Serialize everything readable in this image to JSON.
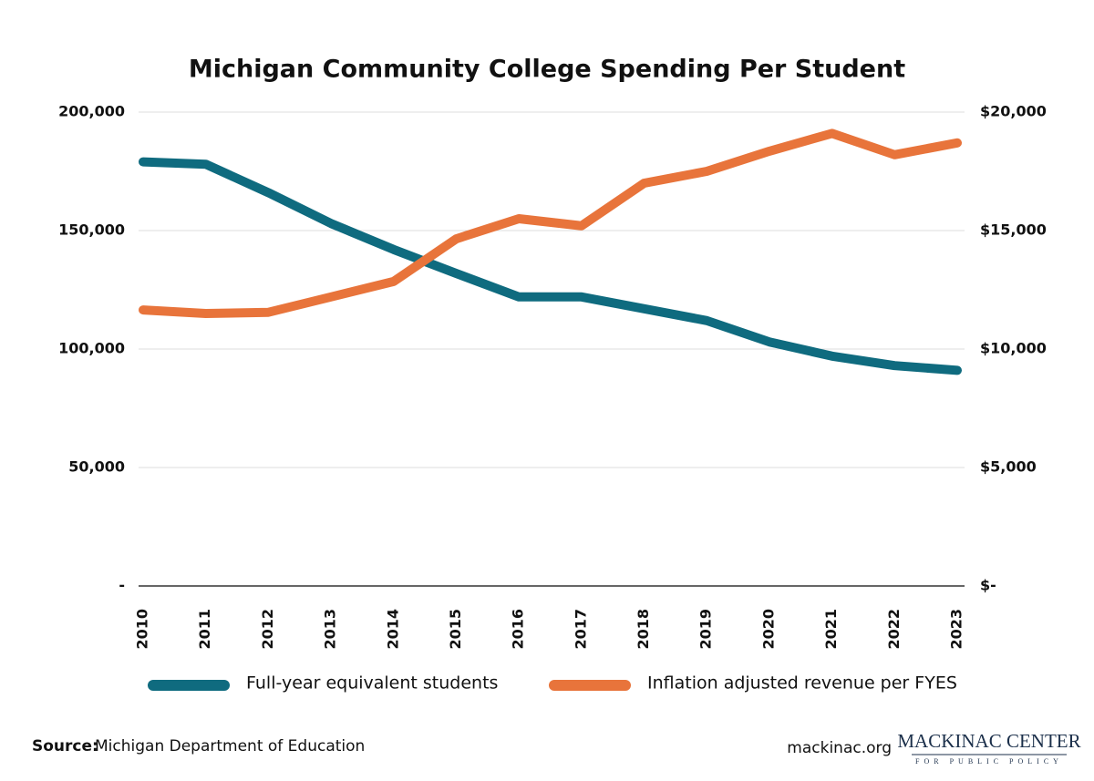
{
  "chart_data": {
    "type": "line",
    "title": "Michigan Community College Spending Per Student",
    "categories": [
      "2010",
      "2011",
      "2012",
      "2013",
      "2014",
      "2015",
      "2016",
      "2017",
      "2018",
      "2019",
      "2020",
      "2021",
      "2022",
      "2023"
    ],
    "series": [
      {
        "name": "Full-year equivalent students",
        "color": "#0f6b7f",
        "values": [
          179000,
          178000,
          166000,
          153000,
          142000,
          131900,
          122000,
          122000,
          117000,
          112000,
          103000,
          97000,
          93000,
          91000
        ]
      },
      {
        "name": "Inflation adjusted revenue per FYES",
        "color": "#e8743b",
        "axis": "y2",
        "values": [
          11650,
          11500,
          11550,
          12200,
          12850,
          14650,
          15500,
          15200,
          17000,
          17500,
          18350,
          19100,
          18200,
          18700
        ]
      }
    ],
    "ylim": [
      0,
      200000
    ],
    "yticks": [
      {
        "value": 0,
        "label": "-"
      },
      {
        "value": 50000,
        "label": "50,000"
      },
      {
        "value": 100000,
        "label": "100,000"
      },
      {
        "value": 150000,
        "label": "150,000"
      },
      {
        "value": 200000,
        "label": "200,000"
      }
    ],
    "y2lim": [
      0,
      20000
    ],
    "y2ticks": [
      {
        "value": 0,
        "label": "$-"
      },
      {
        "value": 5000,
        "label": "$5,000"
      },
      {
        "value": 10000,
        "label": "$10,000"
      },
      {
        "value": 15000,
        "label": "$15,000"
      },
      {
        "value": 20000,
        "label": "$20,000"
      }
    ],
    "grid": true
  },
  "footer": {
    "source_label": "Source:",
    "source": "Michigan Department of Education",
    "website": "mackinac.org",
    "logo_name": "MACKINAC CENTER",
    "logo_tagline": "FOR PUBLIC POLICY"
  }
}
